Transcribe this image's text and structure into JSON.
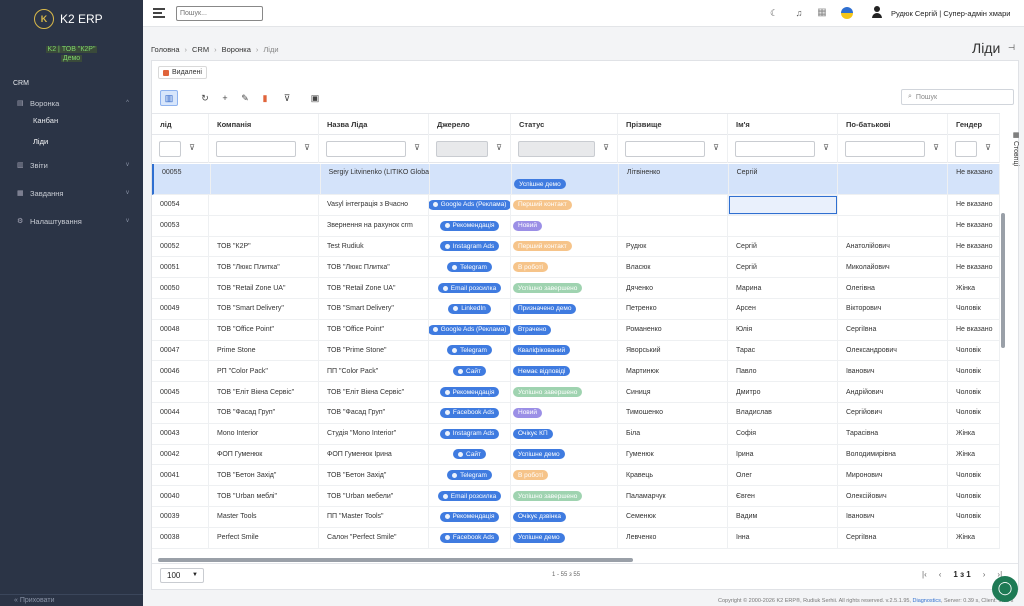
{
  "app": {
    "name": "K2 ERP",
    "logo_letter": "K"
  },
  "org": {
    "line1": "K2 | ТОВ \"К2Р\"",
    "line2": "Демо"
  },
  "sidebar": {
    "section": "CRM",
    "items": [
      {
        "label": "Воронка",
        "icon": "file-icon"
      },
      {
        "label": "Звіти",
        "icon": "chart-icon"
      },
      {
        "label": "Завдання",
        "icon": "calendar-icon"
      },
      {
        "label": "Налаштування",
        "icon": "gear-icon"
      }
    ],
    "sub_items": [
      "Канбан",
      "Ліди"
    ],
    "bottom": "« Приховати"
  },
  "topbar": {
    "search_placeholder": "Пошук...",
    "user": "Рудюк Сергій | Супер-адмін хмари"
  },
  "breadcrumb": [
    "Головна",
    "CRM",
    "Воронка",
    "Ліди"
  ],
  "page_title": "Ліди",
  "deleted_label": "Видалені",
  "grid_search_placeholder": "Пошук",
  "columns": [
    "лід",
    "Компанія",
    "Назва Ліда",
    "Джерело",
    "Статус",
    "Прізвище",
    "Ім'я",
    "По-батькові",
    "Гендер"
  ],
  "side_tab": "Стовпці",
  "colors": {
    "source": "#3f7be0",
    "status": {
      "Успішне демо": "#3f7be0",
      "Перший контакт": "#f6c48a",
      "Новий": "#9b8fe6",
      "В роботі": "#f6c48a",
      "Успішно завершено": "#9fd3b0",
      "Призначено демо": "#3f7be0",
      "Втрачено": "#3f7be0",
      "Кваліфікований": "#3f7be0",
      "Немає відповіді": "#3f7be0",
      "Очікує КП": "#3f7be0",
      "Очікує дзвінка": "#3f7be0"
    }
  },
  "rows": [
    {
      "id": "00055",
      "company": "",
      "name": "Sergiy Litvinenko (LITIKO Global)",
      "source": "",
      "status": "Успішне демо",
      "last": "Літвіненко",
      "first": "Сергій",
      "middle": "",
      "gender": "Не вказано"
    },
    {
      "id": "00054",
      "company": "",
      "name": "Vasyl інтеграція з Вчасно",
      "source": "Google Ads (Реклама)",
      "status": "Перший контакт",
      "last": "",
      "first": "",
      "middle": "",
      "gender": "Не вказано"
    },
    {
      "id": "00053",
      "company": "",
      "name": "Звернення на рахунок crm",
      "source": "Рекомендація",
      "status": "Новий",
      "last": "",
      "first": "",
      "middle": "",
      "gender": "Не вказано"
    },
    {
      "id": "00052",
      "company": "ТОВ \"К2Р\"",
      "name": "Test Rudiuk",
      "source": "Instagram Ads",
      "status": "Перший контакт",
      "last": "Рудюк",
      "first": "Сергій",
      "middle": "Анатолійович",
      "gender": "Не вказано"
    },
    {
      "id": "00051",
      "company": "ТОВ \"Люкс Плитка\"",
      "name": "ТОВ \"Люкс Плитка\"",
      "source": "Telegram",
      "status": "В роботі",
      "last": "Власюк",
      "first": "Сергій",
      "middle": "Миколайович",
      "gender": "Не вказано"
    },
    {
      "id": "00050",
      "company": "ТОВ \"Retail Zone UA\"",
      "name": "ТОВ \"Retail Zone UA\"",
      "source": "Email розсилка",
      "status": "Успішно завершено",
      "last": "Дяченко",
      "first": "Марина",
      "middle": "Олегівна",
      "gender": "Жінка"
    },
    {
      "id": "00049",
      "company": "ТОВ \"Smart Delivery\"",
      "name": "ТОВ \"Smart Delivery\"",
      "source": "LinkedIn",
      "status": "Призначено демо",
      "last": "Петренко",
      "first": "Арсен",
      "middle": "Вікторович",
      "gender": "Чоловік"
    },
    {
      "id": "00048",
      "company": "ТОВ \"Office Point\"",
      "name": "ТОВ \"Office Point\"",
      "source": "Google Ads (Реклама)",
      "status": "Втрачено",
      "last": "Романенко",
      "first": "Юлія",
      "middle": "Сергіївна",
      "gender": "Не вказано"
    },
    {
      "id": "00047",
      "company": "Prime Stone",
      "name": "ТОВ \"Prime Stone\"",
      "source": "Telegram",
      "status": "Кваліфікований",
      "last": "Яворський",
      "first": "Тарас",
      "middle": "Олександрович",
      "gender": "Чоловік"
    },
    {
      "id": "00046",
      "company": "РП \"Color Pack\"",
      "name": "ПП \"Color Pack\"",
      "source": "Сайт",
      "status": "Немає відповіді",
      "last": "Мартинюк",
      "first": "Павло",
      "middle": "Іванович",
      "gender": "Чоловік"
    },
    {
      "id": "00045",
      "company": "ТОВ \"Еліт Вікна Сервіс\"",
      "name": "ТОВ \"Еліт Вікна Сервіс\"",
      "source": "Рекомендація",
      "status": "Успішно завершено",
      "last": "Синиця",
      "first": "Дмитро",
      "middle": "Андрійович",
      "gender": "Чоловік"
    },
    {
      "id": "00044",
      "company": "ТОВ \"Фасад Груп\"",
      "name": "ТОВ \"Фасад Груп\"",
      "source": "Facebook Ads",
      "status": "Новий",
      "last": "Тимошенко",
      "first": "Владислав",
      "middle": "Сергійович",
      "gender": "Чоловік"
    },
    {
      "id": "00043",
      "company": "Mono Interior",
      "name": "Студія \"Mono Interior\"",
      "source": "Instagram Ads",
      "status": "Очікує КП",
      "last": "Біла",
      "first": "Софія",
      "middle": "Тарасівна",
      "gender": "Жінка"
    },
    {
      "id": "00042",
      "company": "ФОП Гуменюк",
      "name": "ФОП Гуменюк Ірина",
      "source": "Сайт",
      "status": "Успішне демо",
      "last": "Гуменюк",
      "first": "Ірина",
      "middle": "Володимирівна",
      "gender": "Жінка"
    },
    {
      "id": "00041",
      "company": "ТОВ \"Бетон Захід\"",
      "name": "ТОВ \"Бетон Захід\"",
      "source": "Telegram",
      "status": "В роботі",
      "last": "Кравець",
      "first": "Олег",
      "middle": "Миронович",
      "gender": "Чоловік"
    },
    {
      "id": "00040",
      "company": "ТОВ \"Urban меблі\"",
      "name": "ТОВ \"Urban мебели\"",
      "source": "Email розсилка",
      "status": "Успішно завершено",
      "last": "Паламарчук",
      "first": "Євген",
      "middle": "Олексійович",
      "gender": "Чоловік"
    },
    {
      "id": "00039",
      "company": "Master Tools",
      "name": "ПП \"Master Tools\"",
      "source": "Рекомендація",
      "status": "Очікує дзвінка",
      "last": "Семенюк",
      "first": "Вадим",
      "middle": "Іванович",
      "gender": "Чоловік"
    },
    {
      "id": "00038",
      "company": "Perfect Smile",
      "name": "Салон \"Perfect Smile\"",
      "source": "Facebook Ads",
      "status": "Успішне демо",
      "last": "Левченко",
      "first": "Інна",
      "middle": "Сергіївна",
      "gender": "Жінка"
    }
  ],
  "footer": {
    "page_size": "100",
    "row_count": "1 - 55 з 55",
    "page": "1 з 1"
  },
  "copyright": {
    "text": "Copyright © 2000-2026 K2 ERP®, Rudiuk Serhii. All rights reserved. v.2.5.1.95,",
    "link": "Diagnostics",
    "tail": ", Server: 0.39 s, Client: 1.32 s"
  }
}
